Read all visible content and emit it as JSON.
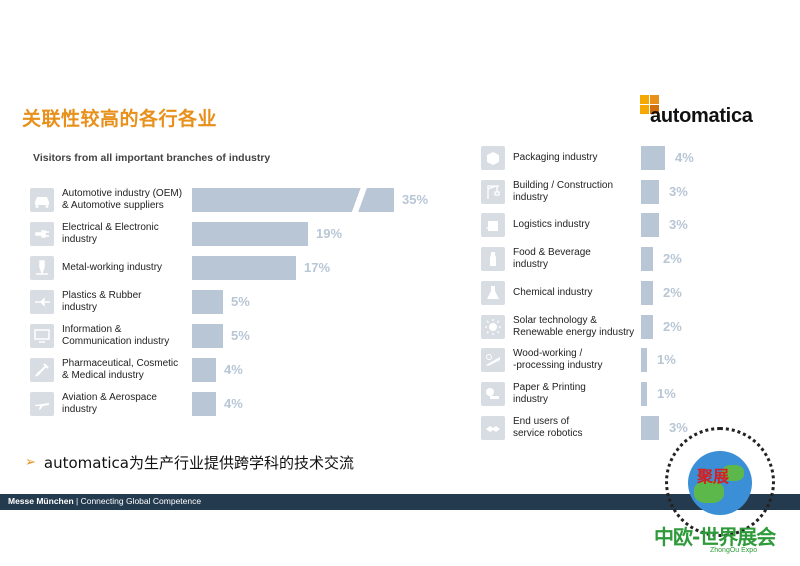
{
  "header": {
    "title": "关联性较高的各行各业",
    "logo_text": "automatica",
    "logo_colors": [
      "#f5a800",
      "#e8901a",
      "#f5a800",
      "#cf6f10"
    ]
  },
  "chart_data": {
    "type": "bar",
    "title": "Visitors from all important branches of industry",
    "orientation": "horizontal",
    "unit": "%",
    "bar_color": "#b8c6d5",
    "value_label_color": "#b8c6d5",
    "axis_break": {
      "category": "Automotive industry (OEM) & Automotive suppliers",
      "note": "bar shown with a diagonal break"
    },
    "series": [
      {
        "values": [
          35,
          19,
          17,
          5,
          5,
          4,
          4,
          4,
          3,
          3,
          2,
          2,
          2,
          1,
          1,
          3
        ]
      }
    ],
    "categories": [
      "Automotive industry (OEM) & Automotive suppliers",
      "Electrical & Electronic industry",
      "Metal-working industry",
      "Plastics & Rubber industry",
      "Information & Communication industry",
      "Pharmaceutical, Cosmetic & Medical industry",
      "Aviation & Aerospace industry",
      "Packaging industry",
      "Building / Construction industry",
      "Logistics industry",
      "Food & Beverage industry",
      "Chemical industry",
      "Solar technology & Renewable energy industry",
      "Wood-working / -processing industry",
      "Paper & Printing industry",
      "End users of service robotics"
    ]
  },
  "left_items": [
    {
      "icon": "car-icon",
      "lines": [
        "Automotive industry (OEM)",
        "& Automotive suppliers"
      ],
      "value": 35,
      "label": "35%"
    },
    {
      "icon": "plug-icon",
      "lines": [
        "Electrical & Electronic",
        "industry"
      ],
      "value": 19,
      "label": "19%"
    },
    {
      "icon": "drill-icon",
      "lines": [
        "Metal-working industry"
      ],
      "value": 17,
      "label": "17%"
    },
    {
      "icon": "nozzle-icon",
      "lines": [
        "Plastics & Rubber",
        "industry"
      ],
      "value": 5,
      "label": "5%"
    },
    {
      "icon": "monitor-icon",
      "lines": [
        "Information &",
        "Communication industry"
      ],
      "value": 5,
      "label": "5%"
    },
    {
      "icon": "syringe-icon",
      "lines": [
        "Pharmaceutical, Cosmetic",
        "& Medical industry"
      ],
      "value": 4,
      "label": "4%"
    },
    {
      "icon": "airplane-icon",
      "lines": [
        "Aviation & Aerospace",
        "industry"
      ],
      "value": 4,
      "label": "4%"
    }
  ],
  "right_items": [
    {
      "icon": "box-icon",
      "lines": [
        "Packaging industry"
      ],
      "value": 4,
      "label": "4%"
    },
    {
      "icon": "crane-icon",
      "lines": [
        "Building / Construction",
        "industry"
      ],
      "value": 3,
      "label": "3%"
    },
    {
      "icon": "parcel-icon",
      "lines": [
        "Logistics industry"
      ],
      "value": 3,
      "label": "3%"
    },
    {
      "icon": "bottle-icon",
      "lines": [
        "Food & Beverage",
        "industry"
      ],
      "value": 2,
      "label": "2%"
    },
    {
      "icon": "flask-icon",
      "lines": [
        "Chemical industry"
      ],
      "value": 2,
      "label": "2%"
    },
    {
      "icon": "sun-icon",
      "lines": [
        "Solar technology &",
        "Renewable energy industry"
      ],
      "value": 2,
      "label": "2%"
    },
    {
      "icon": "saw-icon",
      "lines": [
        "Wood-working /",
        "-processing industry"
      ],
      "value": 1,
      "label": "1%"
    },
    {
      "icon": "paper-roll-icon",
      "lines": [
        "Paper & Printing",
        "industry"
      ],
      "value": 1,
      "label": "1%"
    },
    {
      "icon": "handshake-icon",
      "lines": [
        "End users of",
        "service robotics"
      ],
      "value": 3,
      "label": "3%"
    }
  ],
  "bullet": {
    "text": "automatica为生产行业提供跨学科的技术交流",
    "marker": "➢"
  },
  "footer": {
    "company": "Messe München",
    "tagline": "Connecting Global Competence"
  },
  "watermark": {
    "tag": "聚展",
    "name": "中欧-世界展会",
    "sub": "ZhongOu Expo"
  }
}
